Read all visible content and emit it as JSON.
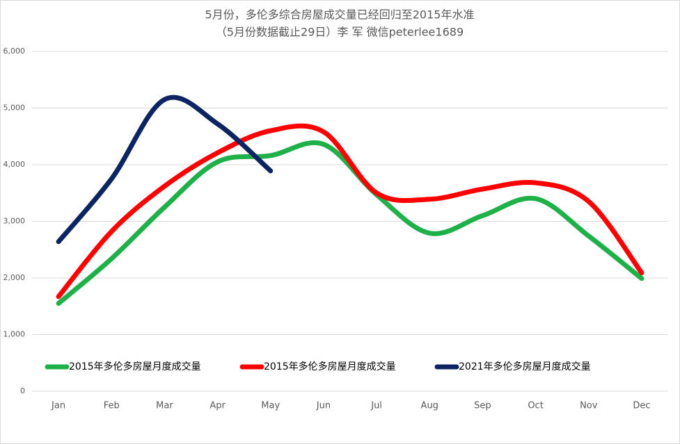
{
  "chart_data": {
    "type": "line",
    "title": "5月份，多伦多综合房屋成交量已经回归至2015年水准",
    "subtitle": "（5月份数据截止29日）李 军  微信peterlee1689",
    "categories": [
      "Jan",
      "Feb",
      "Mar",
      "Apr",
      "May",
      "Jun",
      "Jul",
      "Aug",
      "Sep",
      "Oct",
      "Nov",
      "Dec"
    ],
    "series": [
      {
        "name": "2015年多伦多房屋月度成交量",
        "color": "#1fb04a",
        "values": [
          1550,
          2340,
          3250,
          4050,
          4160,
          4360,
          3470,
          2790,
          3100,
          3400,
          2740,
          1990
        ]
      },
      {
        "name": "2015年多伦多房屋月度成交量",
        "color": "#ff0000",
        "values": [
          1670,
          2820,
          3620,
          4210,
          4600,
          4580,
          3500,
          3390,
          3570,
          3680,
          3350,
          2090
        ]
      },
      {
        "name": "2021年多伦多房屋月度成交量",
        "color": "#0c2461",
        "values": [
          2640,
          3750,
          5150,
          4720,
          3890,
          null,
          null,
          null,
          null,
          null,
          null,
          null
        ]
      }
    ],
    "ylim": [
      0,
      6000
    ],
    "yticks": [
      0,
      {
        "value": 1000,
        "label": "1,000"
      },
      {
        "value": 2000,
        "label": "2,000"
      },
      {
        "value": 3000,
        "label": "3,000"
      },
      {
        "value": 4000,
        "label": "4,000"
      },
      {
        "value": 5000,
        "label": "5,000"
      },
      {
        "value": 6000,
        "label": "6,000"
      }
    ],
    "grid": true,
    "smooth": true
  }
}
